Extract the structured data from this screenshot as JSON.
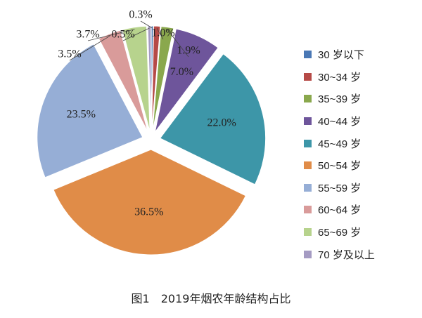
{
  "chart_data": {
    "type": "pie",
    "title": "图1　2019年烟农年龄结构占比",
    "categories": [
      "30 岁以下",
      "30~34 岁",
      "35~39 岁",
      "40~44 岁",
      "45~49 岁",
      "50~54 岁",
      "55~59 岁",
      "60~64 岁",
      "65~69 岁",
      "70 岁及以上"
    ],
    "values": [
      0.3,
      1.0,
      1.9,
      7.0,
      22.0,
      36.5,
      23.5,
      3.5,
      3.7,
      0.5
    ],
    "labels": [
      "0.3%",
      "1.0%",
      "1.9%",
      "7.0%",
      "22.0%",
      "36.5%",
      "23.5%",
      "3.5%",
      "3.7%",
      "0.5%"
    ],
    "colors": [
      "#4a78b5",
      "#b64a47",
      "#8aa84d",
      "#6e559b",
      "#3d96a8",
      "#e08c48",
      "#96aed6",
      "#d99b9a",
      "#b7d38d",
      "#a59bc3"
    ],
    "legend_position": "right",
    "exploded": true
  }
}
